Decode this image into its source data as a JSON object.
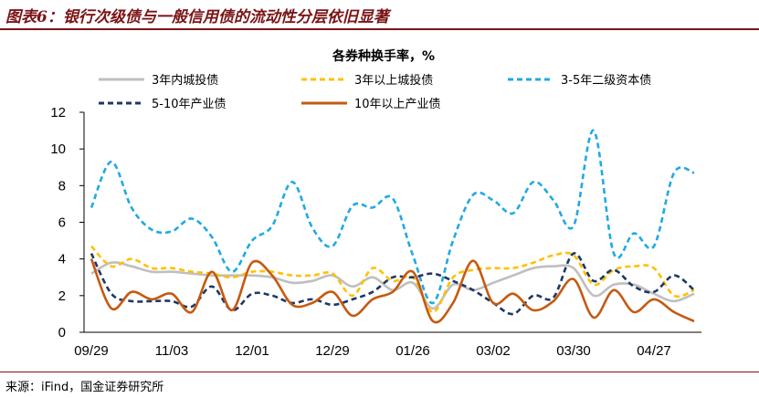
{
  "figure": {
    "title": "图表6：银行次级债与一般信用债的流动性分层依旧显著",
    "source": "来源：iFind，国金证券研究所"
  },
  "chart_data": {
    "type": "line",
    "title": "各券种换手率，%",
    "categories": [
      "09/29",
      "10/13",
      "10/20",
      "10/27",
      "11/03",
      "11/10",
      "11/17",
      "11/24",
      "12/01",
      "12/08",
      "12/15",
      "12/22",
      "12/29",
      "01/05",
      "01/12",
      "01/19",
      "01/26",
      "02/02",
      "02/09",
      "02/16",
      "03/02",
      "03/09",
      "03/16",
      "03/23",
      "03/30",
      "04/06",
      "04/13",
      "04/20",
      "04/27",
      "05/04",
      "05/11"
    ],
    "x_tick_labels": [
      "09/29",
      "11/03",
      "12/01",
      "12/29",
      "01/26",
      "03/02",
      "03/30",
      "04/27"
    ],
    "ylim": [
      0,
      12
    ],
    "yticks": [
      0,
      2,
      4,
      6,
      8,
      10,
      12
    ],
    "grid": false,
    "legend_position": "top",
    "series": [
      {
        "name": "3年内城投债",
        "color": "#bfbfbf",
        "style": "solid",
        "values": [
          3.2,
          3.8,
          3.6,
          3.3,
          3.3,
          3.2,
          3.1,
          3.1,
          3.1,
          3.0,
          2.7,
          2.8,
          3.1,
          2.5,
          3.0,
          2.3,
          2.7,
          1.3,
          2.6,
          2.3,
          2.7,
          3.1,
          3.5,
          3.6,
          3.5,
          2.0,
          2.6,
          2.6,
          2.1,
          1.7,
          2.1
        ]
      },
      {
        "name": "3年以上城投债",
        "color": "#ffc000",
        "style": "dashed",
        "values": [
          4.7,
          3.6,
          4.0,
          3.5,
          3.5,
          3.3,
          3.2,
          3.0,
          3.3,
          3.3,
          3.1,
          3.1,
          3.2,
          2.0,
          3.5,
          2.8,
          3.0,
          1.1,
          3.0,
          3.4,
          3.5,
          3.5,
          3.8,
          4.2,
          4.2,
          2.6,
          3.4,
          3.6,
          3.5,
          2.0,
          2.3
        ]
      },
      {
        "name": "3-5年二级资本债",
        "color": "#21a9e1",
        "style": "dashed",
        "values": [
          6.8,
          9.3,
          6.8,
          5.6,
          5.5,
          6.2,
          5.2,
          3.3,
          5.0,
          5.8,
          8.2,
          5.7,
          4.7,
          6.9,
          6.8,
          7.3,
          4.2,
          1.6,
          5.0,
          7.5,
          7.2,
          6.5,
          8.2,
          7.2,
          5.8,
          11.0,
          4.3,
          5.4,
          4.7,
          8.7,
          8.7
        ]
      },
      {
        "name": "5-10年产业债",
        "color": "#1f3864",
        "style": "dashed",
        "values": [
          4.3,
          2.1,
          1.7,
          1.7,
          1.7,
          1.4,
          2.5,
          1.2,
          2.1,
          2.0,
          1.6,
          1.8,
          1.5,
          1.8,
          2.2,
          3.0,
          3.0,
          3.2,
          2.8,
          2.3,
          1.6,
          1.0,
          2.0,
          1.9,
          4.3,
          2.8,
          3.4,
          2.5,
          2.2,
          3.1,
          2.3
        ]
      },
      {
        "name": "10年以上产业债",
        "color": "#c55a11",
        "style": "solid",
        "values": [
          4.0,
          1.3,
          2.2,
          1.8,
          2.1,
          1.1,
          3.3,
          1.2,
          3.8,
          3.1,
          1.5,
          1.6,
          2.2,
          0.9,
          1.8,
          2.2,
          3.3,
          0.6,
          1.6,
          3.9,
          1.6,
          2.1,
          1.2,
          1.7,
          2.9,
          0.8,
          2.3,
          1.1,
          1.8,
          1.1,
          0.6
        ]
      }
    ]
  }
}
